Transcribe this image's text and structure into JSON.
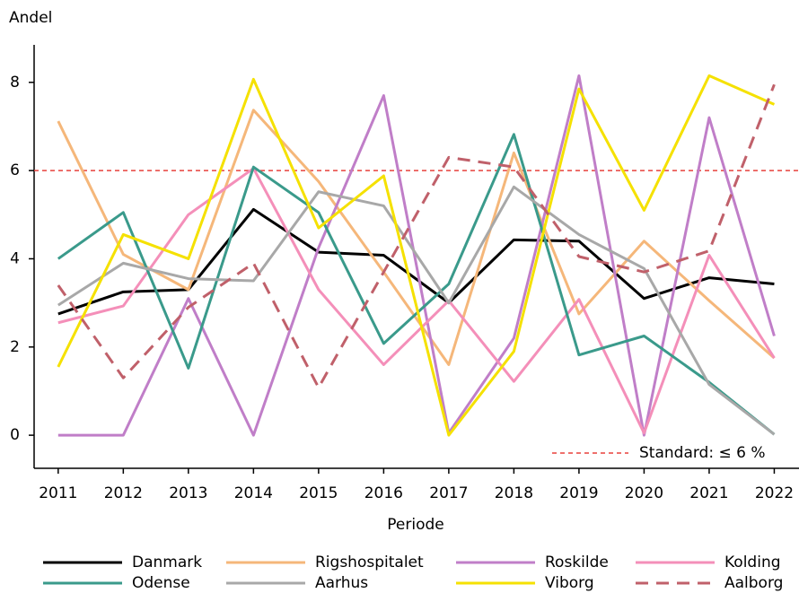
{
  "chart_data": {
    "type": "line",
    "y_label": "Andel",
    "x_label": "Periode",
    "x": [
      2011,
      2012,
      2013,
      2014,
      2015,
      2016,
      2017,
      2018,
      2019,
      2020,
      2021,
      2022
    ],
    "xlim": [
      2010.63,
      2022.38
    ],
    "xticks": [
      2011,
      2012,
      2013,
      2014,
      2015,
      2016,
      2017,
      2018,
      2019,
      2020,
      2021,
      2022
    ],
    "ylim": [
      -0.75,
      8.85
    ],
    "yticks": [
      0,
      2,
      4,
      6,
      8
    ],
    "reference_line": {
      "value": 6,
      "label": "Standard: ≤ 6 %",
      "color": "#e8413c"
    },
    "series": [
      {
        "name": "Danmark",
        "color": "#000000",
        "linestyle": "solid",
        "values": [
          2.75,
          3.25,
          3.3,
          5.12,
          4.15,
          4.08,
          3.0,
          4.43,
          4.4,
          3.1,
          3.57,
          3.43
        ]
      },
      {
        "name": "Rigshospitalet",
        "color": "#f5b77a",
        "linestyle": "solid",
        "values": [
          7.12,
          4.1,
          3.3,
          7.37,
          5.75,
          3.7,
          1.6,
          6.4,
          2.75,
          4.4,
          3.05,
          1.75
        ]
      },
      {
        "name": "Roskilde",
        "color": "#c07ec8",
        "linestyle": "solid",
        "values": [
          0,
          0,
          3.1,
          0,
          4.25,
          7.7,
          0.05,
          2.2,
          8.15,
          0,
          7.2,
          2.25
        ]
      },
      {
        "name": "Kolding",
        "color": "#f48fb9",
        "linestyle": "solid",
        "values": [
          2.55,
          2.93,
          5.0,
          6.05,
          3.3,
          1.6,
          3.05,
          1.22,
          3.08,
          0.05,
          4.08,
          1.75
        ]
      },
      {
        "name": "Odense",
        "color": "#3a9a8b",
        "linestyle": "solid",
        "values": [
          4.0,
          5.05,
          1.52,
          6.08,
          5.05,
          2.08,
          3.43,
          6.82,
          1.82,
          2.25,
          1.2,
          0.02
        ]
      },
      {
        "name": "Aarhus",
        "color": "#a8a8a8",
        "linestyle": "solid",
        "values": [
          2.95,
          3.9,
          3.55,
          3.5,
          5.52,
          5.2,
          3.0,
          5.63,
          4.55,
          3.78,
          1.15,
          0.02
        ]
      },
      {
        "name": "Viborg",
        "color": "#f5e100",
        "linestyle": "solid",
        "values": [
          1.55,
          4.55,
          4.0,
          8.07,
          4.7,
          5.88,
          0,
          1.9,
          7.85,
          5.1,
          8.15,
          7.5
        ]
      },
      {
        "name": "Aalborg",
        "color": "#c0606a",
        "linestyle": "dashed",
        "values": [
          3.4,
          1.3,
          2.9,
          3.9,
          1.08,
          3.7,
          6.3,
          6.08,
          4.05,
          3.7,
          4.18,
          7.95
        ]
      }
    ]
  }
}
